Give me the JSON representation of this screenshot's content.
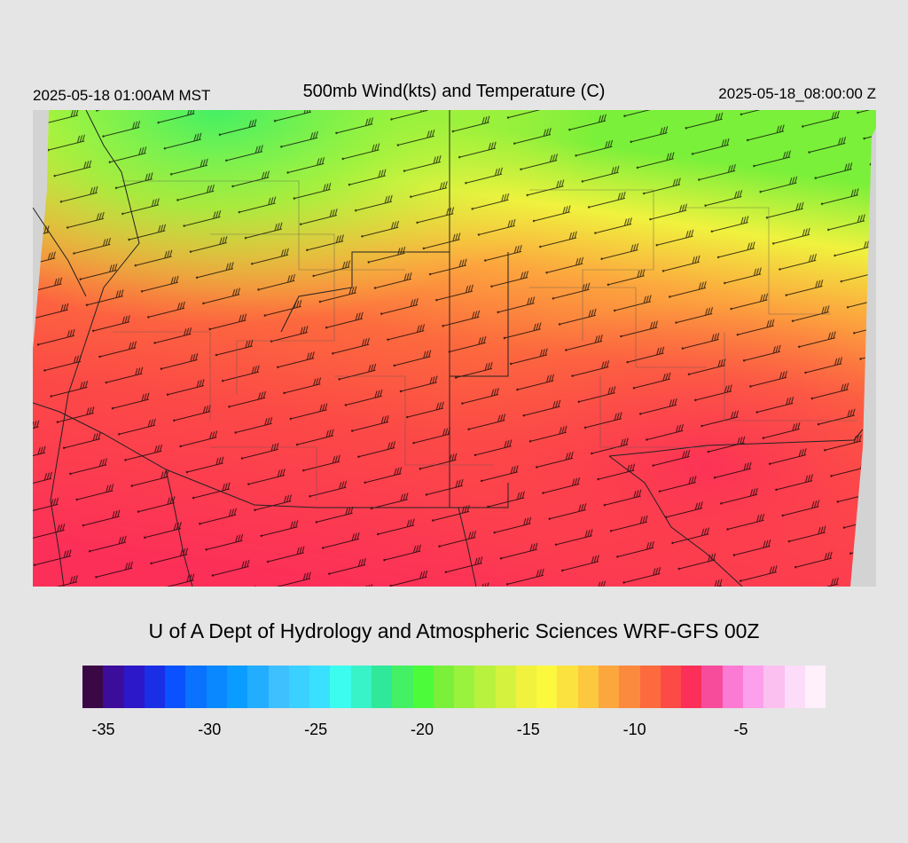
{
  "header": {
    "local_time": "2025-05-18 01:00AM MST",
    "title": "500mb Wind(kts) and Temperature (C)",
    "valid_time": "2025-05-18_08:00:00 Z"
  },
  "footer": {
    "credit": "U of A Dept of Hydrology and Atmospheric Sciences WRF-GFS 00Z"
  },
  "legend": {
    "colors": [
      "#3a0845",
      "#3c0d9a",
      "#2c18c8",
      "#1a2ee6",
      "#0a52ff",
      "#0a72ff",
      "#0a88ff",
      "#0a9dff",
      "#22adff",
      "#3ec0ff",
      "#3ad0ff",
      "#3ae0ff",
      "#3cfcef",
      "#38f2c8",
      "#30e89a",
      "#44f064",
      "#4cfc3a",
      "#7af03a",
      "#9af23e",
      "#b8f23e",
      "#d4f23e",
      "#f0f23e",
      "#fcf83e",
      "#fce23e",
      "#fcc83e",
      "#fca63e",
      "#fc8a3e",
      "#fc6a3e",
      "#fc4a46",
      "#fc2f58",
      "#f74c9c",
      "#fb7ad4",
      "#fca0ec",
      "#fcc0f0",
      "#fcdcf8",
      "#fff0fc"
    ],
    "ticks": [
      {
        "label": "-35",
        "frac": 0.028
      },
      {
        "label": "-30",
        "frac": 0.171
      },
      {
        "label": "-25",
        "frac": 0.314
      },
      {
        "label": "-20",
        "frac": 0.457
      },
      {
        "label": "-15",
        "frac": 0.6
      },
      {
        "label": "-10",
        "frac": 0.743
      },
      {
        "label": "-5",
        "frac": 0.886
      }
    ]
  }
}
